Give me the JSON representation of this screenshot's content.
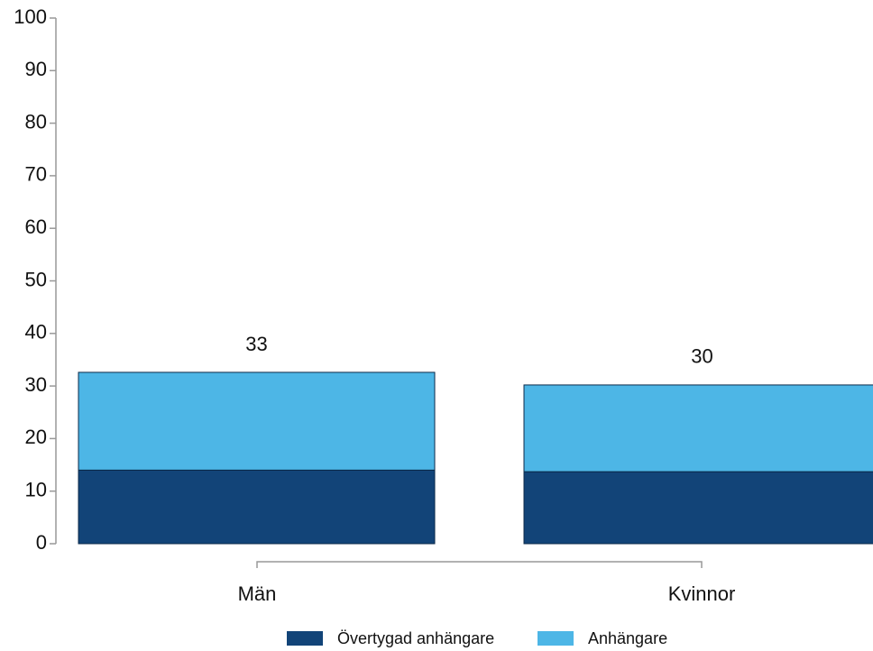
{
  "chart_data": {
    "type": "stacked_bar",
    "categories": [
      "Män",
      "Kvinnor"
    ],
    "series": [
      {
        "name": "Övertygad anhängare",
        "color": "#124478",
        "values": [
          14,
          13.7
        ]
      },
      {
        "name": "Anhängare",
        "color": "#4db6e6",
        "values": [
          18.6,
          16.5
        ]
      }
    ],
    "totals": [
      33,
      30
    ],
    "ylim": [
      0,
      100
    ],
    "yticks": [
      0,
      10,
      20,
      30,
      40,
      50,
      60,
      70,
      80,
      90,
      100
    ],
    "legend": "bottom"
  }
}
